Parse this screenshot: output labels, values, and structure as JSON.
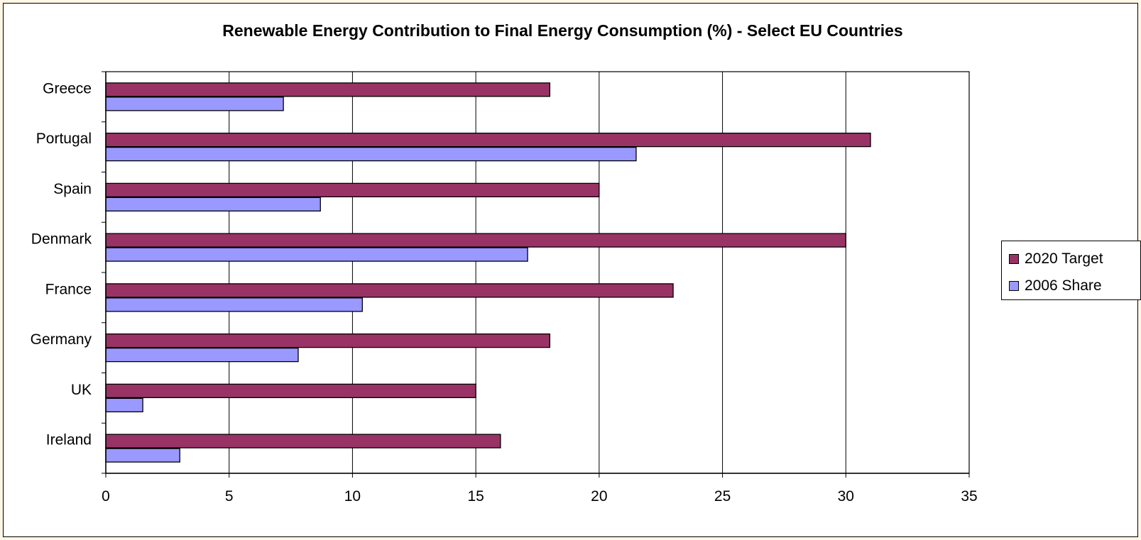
{
  "colors": {
    "target": "#993366",
    "share": "#9999ff",
    "grid": "#000000",
    "frame": "#000000"
  },
  "chart_data": {
    "type": "bar",
    "orientation": "horizontal",
    "title": "Renewable Energy Contribution to Final Energy Consumption (%) - Select EU Countries",
    "categories": [
      "Greece",
      "Portugal",
      "Spain",
      "Denmark",
      "France",
      "Germany",
      "UK",
      "Ireland"
    ],
    "series": [
      {
        "name": "2020 Target",
        "values": [
          18,
          31,
          20,
          30,
          23,
          18,
          15,
          16
        ]
      },
      {
        "name": "2006 Share",
        "values": [
          7.2,
          21.5,
          8.7,
          17.1,
          10.4,
          7.8,
          1.5,
          3.0
        ]
      }
    ],
    "xlim": [
      0,
      35
    ],
    "xticks": [
      0,
      5,
      10,
      15,
      20,
      25,
      30,
      35
    ],
    "grid": true,
    "legend_position": "right"
  }
}
